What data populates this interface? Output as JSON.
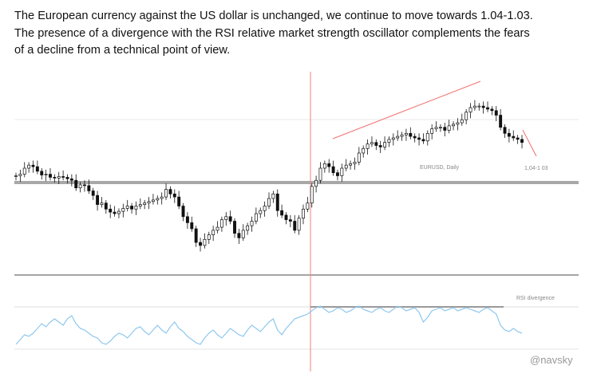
{
  "text": {
    "line1": "The European currency against the US dollar is unchanged, we continue to move towards 1.04-1.03.",
    "line2": "The presence of a divergence with the RSI relative market strength oscillator complements the fears",
    "line3": "of a decline from a technical point of view."
  },
  "chart_data": {
    "type": "candlestick",
    "symbol_label": "EURUSD, Daily",
    "target_label": "1,04-1 03",
    "rsi_label": "RSI divergence",
    "watermark": "@navsky",
    "colors": {
      "candle": "#111111",
      "resistance_line": "#aaaaaa",
      "vertical_line": "#f08080",
      "trend_line": "#f07070",
      "rsi": "#8ec8ee",
      "rsi_divergence_line": "#999999"
    },
    "price": [
      10,
      12,
      20,
      24,
      22,
      16,
      11,
      12,
      8,
      7,
      9,
      8,
      6,
      4,
      -6,
      -2,
      -3,
      -10,
      -16,
      -28,
      -26,
      -34,
      -38,
      -40,
      -37,
      -33,
      -30,
      -34,
      -30,
      -28,
      -26,
      -24,
      -22,
      -20,
      -18,
      -8,
      -14,
      -18,
      -30,
      -44,
      -52,
      -60,
      -78,
      -82,
      -74,
      -68,
      -62,
      -58,
      -48,
      -44,
      -50,
      -66,
      -72,
      -62,
      -56,
      -50,
      -40,
      -36,
      -30,
      -20,
      -14,
      -36,
      -42,
      -48,
      -50,
      -62,
      -46,
      -34,
      -26,
      -4,
      4,
      20,
      26,
      22,
      14,
      10,
      20,
      24,
      26,
      28,
      40,
      46,
      52,
      54,
      50,
      48,
      54,
      58,
      60,
      62,
      64,
      66,
      62,
      60,
      58,
      56,
      66,
      72,
      74,
      74,
      70,
      76,
      78,
      80,
      84,
      94,
      100,
      102,
      102,
      100,
      98,
      96,
      90,
      74,
      66,
      62,
      60,
      58,
      54
    ],
    "rsi": [
      38,
      44,
      50,
      48,
      52,
      58,
      64,
      60,
      66,
      70,
      66,
      62,
      70,
      74,
      64,
      58,
      56,
      52,
      48,
      46,
      40,
      38,
      42,
      48,
      52,
      50,
      46,
      52,
      58,
      60,
      54,
      50,
      56,
      62,
      56,
      52,
      60,
      66,
      58,
      54,
      48,
      44,
      40,
      38,
      46,
      52,
      56,
      50,
      46,
      52,
      58,
      54,
      50,
      48,
      56,
      62,
      58,
      54,
      60,
      66,
      70,
      56,
      50,
      58,
      64,
      70,
      72,
      74,
      76,
      80,
      84,
      86,
      82,
      78,
      80,
      84,
      82,
      78,
      80,
      84,
      86,
      82,
      80,
      78,
      82,
      84,
      80,
      78,
      82,
      86,
      84,
      80,
      82,
      84,
      78,
      66,
      72,
      80,
      82,
      84,
      80,
      82,
      84,
      80,
      82,
      84,
      82,
      80,
      78,
      82,
      84,
      80,
      76,
      62,
      56,
      54,
      58,
      54,
      52
    ]
  }
}
